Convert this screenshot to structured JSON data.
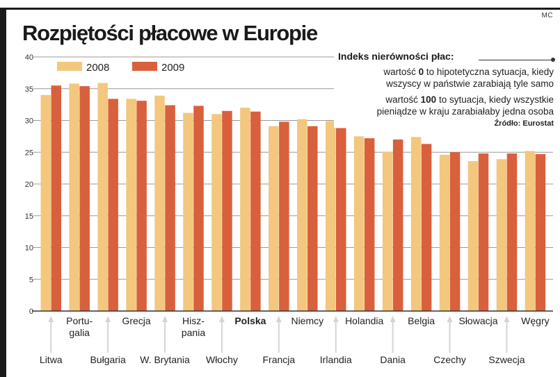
{
  "credit": "MC",
  "title": "Rozpiętości płacowe w Europie",
  "note": {
    "title": "Indeks nierówności płac:",
    "line1a_pre": "wartość ",
    "line1a_num": "0",
    "line1a_post": " to hipotetyczna sytuacja, kiedy",
    "line1b": "wszyscy w państwie zarabiają tyle samo",
    "line2a_pre": "wartość ",
    "line2a_num": "100",
    "line2a_post": " to sytuacja, kiedy wszystkie",
    "line2b": "pieniądze w kraju zarabiałaby jedna osoba",
    "source": "Źródło: Eurostat"
  },
  "colors": {
    "s2008": "#f3c77d",
    "s2009": "#d9603c",
    "axis": "#333333",
    "grid": "#999999",
    "guide": "#d4d4d4"
  },
  "chart_data": {
    "type": "bar",
    "title": "Rozpiętości płacowe w Europie",
    "xlabel": "",
    "ylabel": "",
    "ylim": [
      0,
      40
    ],
    "yticks": [
      0,
      5,
      10,
      15,
      20,
      25,
      30,
      35,
      40
    ],
    "grid": true,
    "legend": "top-left",
    "highlight": "Polska",
    "categories": [
      "Litwa",
      "Portugalia",
      "Bułgaria",
      "Grecja",
      "W. Brytania",
      "Hiszpania",
      "Włochy",
      "Polska",
      "Francja",
      "Niemcy",
      "Irlandia",
      "Holandia",
      "Dania",
      "Belgia",
      "Czechy",
      "Słowacja",
      "Szwecja",
      "Węgry"
    ],
    "category_display": [
      "Litwa",
      "Portu-\ngalia",
      "Bułgaria",
      "Grecja",
      "W. Brytania",
      "Hisz-\npania",
      "Włochy",
      "Polska",
      "Francja",
      "Niemcy",
      "Irlandia",
      "Holandia",
      "Dania",
      "Belgia",
      "Czechy",
      "Słowacja",
      "Szwecja",
      "Węgry"
    ],
    "series": [
      {
        "name": "2008",
        "values": [
          34.0,
          35.8,
          35.9,
          33.4,
          33.9,
          31.2,
          31.0,
          32.0,
          29.1,
          30.2,
          29.9,
          27.5,
          25.1,
          27.4,
          24.6,
          23.6,
          23.9,
          25.2
        ]
      },
      {
        "name": "2009",
        "values": [
          35.5,
          35.4,
          33.4,
          33.1,
          32.4,
          32.3,
          31.5,
          31.4,
          29.8,
          29.1,
          28.8,
          27.2,
          27.0,
          26.3,
          25.0,
          24.8,
          24.8,
          24.7
        ]
      }
    ]
  }
}
